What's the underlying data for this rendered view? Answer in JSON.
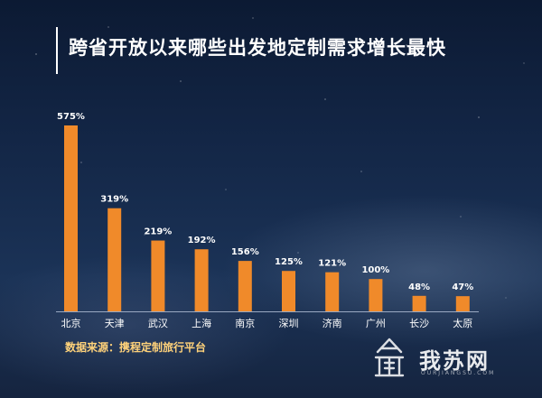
{
  "title": "跨省开放以来哪些出发地定制需求增长最快",
  "source": "数据来源：携程定制旅行平台",
  "logo": {
    "text": "我苏网",
    "sub": "OURJIANGSU.COM"
  },
  "colors": {
    "bar": "#f08a2a",
    "axis": "#9aa9c2"
  },
  "chart_data": {
    "type": "bar",
    "categories": [
      "北京",
      "天津",
      "武汉",
      "上海",
      "南京",
      "深圳",
      "济南",
      "广州",
      "长沙",
      "太原"
    ],
    "values": [
      575,
      319,
      219,
      192,
      156,
      125,
      121,
      100,
      48,
      47
    ],
    "value_labels": [
      "575%",
      "319%",
      "219%",
      "192%",
      "156%",
      "125%",
      "121%",
      "100%",
      "48%",
      "47%"
    ],
    "title": "跨省开放以来哪些出发地定制需求增长最快",
    "ylim": [
      0,
      575
    ],
    "grid": false,
    "legend": "none"
  }
}
